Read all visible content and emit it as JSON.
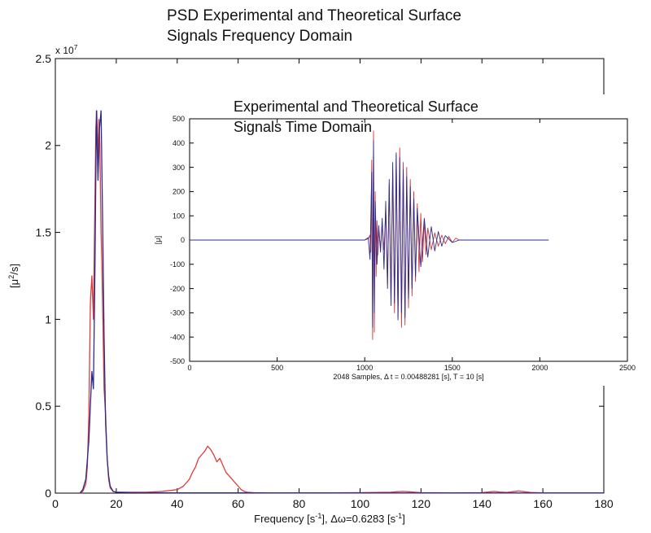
{
  "chart_data": [
    {
      "type": "line",
      "title_lines": [
        "PSD Experimental and Theoretical Surface",
        "Signals Frequency Domain"
      ],
      "xlabel_parts": [
        "Frequency [s",
        "-1",
        "], Δω=0.6283 [s",
        "-1",
        "]"
      ],
      "ylabel_parts": [
        "[μ",
        "2",
        "/s]"
      ],
      "y_exponent_parts": [
        "x 10",
        "7"
      ],
      "xlim": [
        0,
        180
      ],
      "ylim": [
        0,
        2.5
      ],
      "xticks": [
        0,
        20,
        40,
        60,
        80,
        100,
        120,
        140,
        160,
        180
      ],
      "yticks": [
        0,
        0.5,
        1,
        1.5,
        2,
        2.5
      ],
      "yticklabels": [
        "0",
        "0.5",
        "1",
        "1.5",
        "2",
        "2.5"
      ],
      "grid": false,
      "series": [
        {
          "color": "#e03a3a",
          "x": [
            8,
            9,
            10,
            10.5,
            11,
            11.5,
            12,
            12.5,
            13,
            13.3,
            13.6,
            14,
            14.3,
            14.6,
            15,
            15.3,
            15.6,
            16,
            16.5,
            17,
            17.5,
            18,
            19,
            20,
            25,
            30,
            35,
            40,
            42,
            44,
            45,
            46,
            47,
            48,
            49,
            50,
            51,
            52,
            53,
            54,
            55,
            56,
            57,
            58,
            59,
            60,
            61,
            62,
            63,
            65,
            70,
            80,
            90,
            100,
            105,
            110,
            112,
            114,
            116,
            118,
            120,
            130,
            140,
            142,
            144,
            146,
            148,
            150,
            152,
            154,
            156,
            160,
            180
          ],
          "y": [
            0,
            0.01,
            0.05,
            0.15,
            0.45,
            1.1,
            1.25,
            1.0,
            1.7,
            2.1,
            2.2,
            1.9,
            2.15,
            2.0,
            1.5,
            1.3,
            1.0,
            0.6,
            0.45,
            0.2,
            0.08,
            0.03,
            0.01,
            0.005,
            0.005,
            0.005,
            0.01,
            0.02,
            0.04,
            0.08,
            0.12,
            0.15,
            0.2,
            0.22,
            0.24,
            0.27,
            0.25,
            0.22,
            0.18,
            0.2,
            0.16,
            0.12,
            0.1,
            0.08,
            0.06,
            0.04,
            0.02,
            0.01,
            0.005,
            0.003,
            0.002,
            0.002,
            0.002,
            0.003,
            0.004,
            0.005,
            0.008,
            0.01,
            0.008,
            0.005,
            0.003,
            0.002,
            0.003,
            0.006,
            0.01,
            0.006,
            0.004,
            0.008,
            0.012,
            0.008,
            0.004,
            0.002,
            0.001
          ]
        },
        {
          "color": "#2b2b8c",
          "x": [
            8,
            9,
            10,
            11,
            12,
            12.5,
            13,
            13.5,
            14,
            14.5,
            15,
            15.5,
            16,
            16.5,
            17,
            17.5,
            18,
            19,
            20,
            25,
            40,
            50,
            60,
            80,
            100,
            120,
            140,
            160,
            180
          ],
          "y": [
            0,
            0.02,
            0.08,
            0.3,
            0.7,
            0.6,
            1.3,
            2.2,
            1.8,
            2.1,
            2.2,
            1.6,
            0.9,
            0.4,
            0.2,
            0.1,
            0.04,
            0.01,
            0.005,
            0.003,
            0.002,
            0.002,
            0.002,
            0.001,
            0.001,
            0.001,
            0.001,
            0.001,
            0.001
          ]
        }
      ]
    },
    {
      "type": "line",
      "title_lines": [
        "Experimental and Theoretical Surface",
        " Signals Time Domain"
      ],
      "xlabel": "2048 Samples, Δ t = 0.00488281 [s], T = 10 [s]",
      "ylabel": "[μ]",
      "xlim": [
        0,
        2500
      ],
      "ylim": [
        -500,
        500
      ],
      "xticks": [
        0,
        500,
        1000,
        1500,
        2000,
        2500
      ],
      "yticks": [
        -500,
        -400,
        -300,
        -200,
        -100,
        0,
        100,
        200,
        300,
        400,
        500
      ],
      "grid": false,
      "series": [
        {
          "color": "#d03838",
          "x": [
            0,
            1000,
            1020,
            1030,
            1035,
            1040,
            1045,
            1050,
            1055,
            1060,
            1065,
            1070,
            1075,
            1080,
            1090,
            1100,
            1110,
            1120,
            1130,
            1140,
            1150,
            1160,
            1170,
            1180,
            1190,
            1200,
            1210,
            1220,
            1230,
            1240,
            1250,
            1260,
            1270,
            1280,
            1290,
            1300,
            1310,
            1320,
            1330,
            1340,
            1350,
            1360,
            1380,
            1400,
            1420,
            1440,
            1460,
            1480,
            1500,
            1520,
            1540,
            2050
          ],
          "y": [
            0,
            0,
            5,
            20,
            -50,
            330,
            -410,
            450,
            -380,
            200,
            -150,
            80,
            -60,
            40,
            -30,
            60,
            -40,
            120,
            -180,
            230,
            -250,
            280,
            -300,
            350,
            -320,
            380,
            -360,
            320,
            -350,
            300,
            -280,
            250,
            -230,
            200,
            -170,
            150,
            -130,
            110,
            -90,
            80,
            -60,
            50,
            -40,
            30,
            -25,
            20,
            -15,
            15,
            -10,
            8,
            0,
            0
          ]
        },
        {
          "color": "#2b2b8c",
          "x": [
            0,
            1000,
            1020,
            1030,
            1040,
            1045,
            1050,
            1055,
            1060,
            1070,
            1080,
            1090,
            1100,
            1110,
            1120,
            1130,
            1140,
            1150,
            1160,
            1170,
            1180,
            1190,
            1200,
            1210,
            1220,
            1230,
            1240,
            1250,
            1260,
            1270,
            1280,
            1290,
            1300,
            1320,
            1340,
            1360,
            1380,
            1400,
            1420,
            1440,
            1460,
            1500,
            1540,
            2050
          ],
          "y": [
            0,
            0,
            10,
            -80,
            280,
            -360,
            410,
            -300,
            160,
            -100,
            60,
            -50,
            90,
            -120,
            160,
            -200,
            250,
            -270,
            320,
            -260,
            360,
            -330,
            340,
            -300,
            290,
            -320,
            260,
            -240,
            220,
            -200,
            170,
            -150,
            130,
            -110,
            90,
            -70,
            55,
            -45,
            35,
            -25,
            18,
            -10,
            0,
            0
          ]
        }
      ]
    }
  ]
}
